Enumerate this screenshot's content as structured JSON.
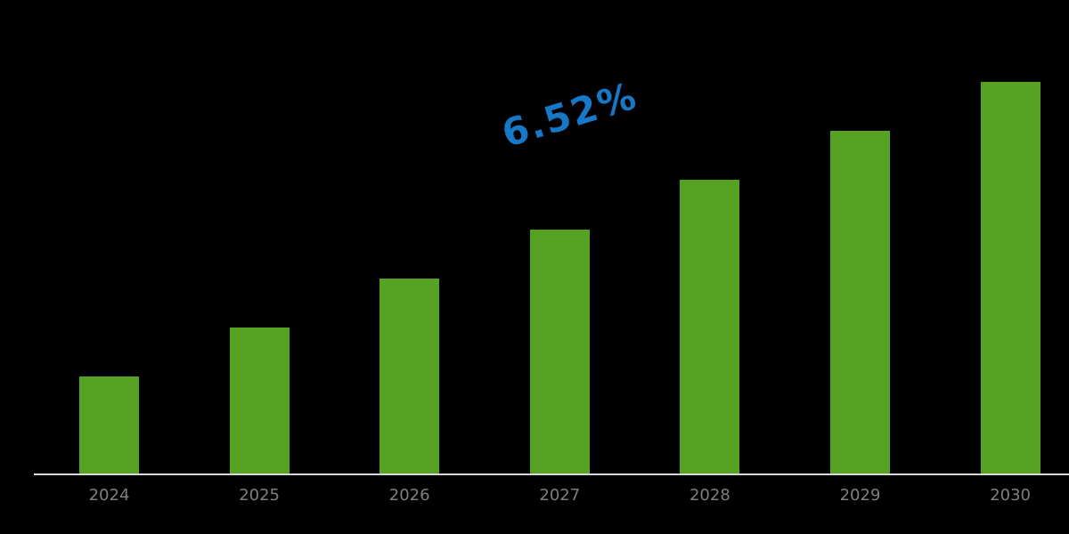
{
  "chart_data": {
    "type": "bar",
    "title": "",
    "xlabel": "",
    "ylabel": "",
    "categories": [
      "2024",
      "2025",
      "2026",
      "2027",
      "2028",
      "2029",
      "2030"
    ],
    "values": [
      110,
      165,
      220,
      275,
      331,
      386,
      441
    ],
    "value_units": "relative bar height (no y-axis shown)",
    "annotations": [
      {
        "text": "6.52%",
        "meaning": "CAGR",
        "position": "above 2027 bar, rotated upward"
      }
    ],
    "grid": false,
    "legend": null,
    "colors": {
      "bar": "#56a223",
      "annotation": "#1778c7",
      "axis": "#d9d9d9",
      "tick_label": "#7f7f7f",
      "background": "#000000"
    }
  },
  "annotation": {
    "cagr": "6.52%"
  },
  "x_labels": [
    "2024",
    "2025",
    "2026",
    "2027",
    "2028",
    "2029",
    "2030"
  ]
}
